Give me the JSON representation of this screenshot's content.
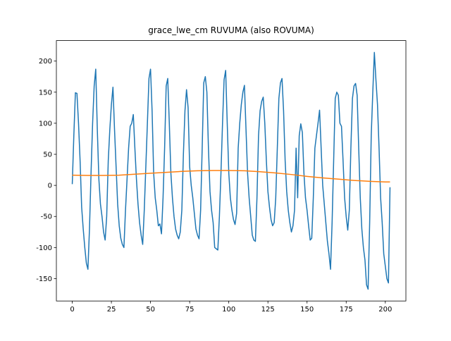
{
  "chart_data": {
    "type": "line",
    "title": "grace_lwe_cm RUVUMA (also ROVUMA)",
    "xlim": [
      -10.15,
      213.15
    ],
    "xticks": [
      0,
      25,
      50,
      75,
      100,
      125,
      150,
      175,
      200
    ],
    "ylim": [
      -186,
      233
    ],
    "yticks": [
      -150,
      -100,
      -50,
      0,
      50,
      100,
      150,
      200
    ],
    "series": [
      {
        "color": "#1f77b4",
        "values": [
          2,
          80,
          149,
          148,
          100,
          40,
          -35,
          -70,
          -100,
          -125,
          -135,
          -70,
          20,
          100,
          160,
          187,
          90,
          10,
          -30,
          -50,
          -75,
          -88,
          -50,
          40,
          90,
          130,
          158,
          90,
          30,
          -30,
          -65,
          -85,
          -95,
          -100,
          -40,
          10,
          60,
          95,
          100,
          114,
          60,
          10,
          -30,
          -60,
          -80,
          -95,
          -40,
          30,
          100,
          172,
          187,
          120,
          20,
          -20,
          -40,
          -65,
          -62,
          -78,
          -20,
          60,
          160,
          172,
          100,
          20,
          -20,
          -50,
          -70,
          -80,
          -86,
          -75,
          -40,
          50,
          120,
          154,
          125,
          30,
          0,
          -20,
          -45,
          -70,
          -80,
          -86,
          -40,
          60,
          165,
          175,
          150,
          60,
          -10,
          -40,
          -60,
          -100,
          -102,
          -104,
          -50,
          20,
          100,
          170,
          185,
          100,
          20,
          -20,
          -40,
          -55,
          -63,
          -45,
          60,
          100,
          130,
          150,
          161,
          90,
          20,
          -20,
          -50,
          -80,
          -88,
          -90,
          -20,
          80,
          120,
          135,
          142,
          100,
          40,
          -10,
          -35,
          -55,
          -65,
          -60,
          -20,
          60,
          140,
          165,
          172,
          120,
          40,
          -10,
          -40,
          -60,
          -75,
          -65,
          -40,
          60,
          -20,
          80,
          99,
          85,
          20,
          -20,
          -40,
          -65,
          -88,
          -85,
          -20,
          60,
          80,
          100,
          121,
          60,
          0,
          -30,
          -60,
          -90,
          -110,
          -135,
          -60,
          40,
          140,
          150,
          145,
          100,
          95,
          40,
          -20,
          -50,
          -72,
          -40,
          60,
          140,
          160,
          164,
          145,
          60,
          -20,
          -70,
          -100,
          -120,
          -160,
          -167,
          -60,
          80,
          150,
          214,
          170,
          130,
          60,
          -20,
          -60,
          -110,
          -130,
          -150,
          -157,
          -3
        ]
      },
      {
        "color": "#ff7f0e",
        "x": [
          0,
          10,
          20,
          30,
          40,
          50,
          60,
          70,
          80,
          90,
          100,
          110,
          120,
          130,
          140,
          150,
          160,
          170,
          180,
          190,
          200,
          203
        ],
        "values": [
          16.5,
          16,
          16,
          16.5,
          18,
          19.5,
          21,
          22.5,
          23.5,
          24,
          24,
          23.5,
          22,
          20,
          17.5,
          14.5,
          12,
          10,
          8,
          6.5,
          5.5,
          5.5
        ]
      }
    ]
  }
}
